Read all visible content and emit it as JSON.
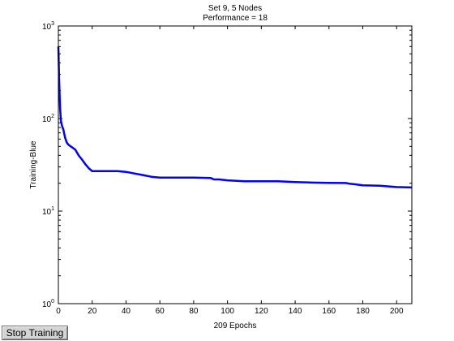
{
  "chart_data": {
    "type": "line",
    "title": "Set 9, 5 Nodes",
    "subtitle": "Performance = 18",
    "xlabel": "209 Epochs",
    "ylabel": "Training-Blue",
    "xlim": [
      0,
      209
    ],
    "ylim": [
      1,
      1000
    ],
    "yscale": "log",
    "grid": false,
    "xticks": [
      0,
      20,
      40,
      60,
      80,
      100,
      120,
      140,
      160,
      180,
      200
    ],
    "yticks": [
      {
        "value": 1,
        "base": "10",
        "exp": "0"
      },
      {
        "value": 10,
        "base": "10",
        "exp": "1"
      },
      {
        "value": 100,
        "base": "10",
        "exp": "2"
      },
      {
        "value": 1000,
        "base": "10",
        "exp": "3"
      }
    ],
    "series": [
      {
        "color": "#0000ff",
        "x": [
          0,
          0.5,
          1,
          1.5,
          2,
          3,
          4,
          5,
          6,
          8,
          10,
          12,
          14,
          16,
          18,
          19,
          20,
          25,
          30,
          35,
          40,
          45,
          50,
          55,
          60,
          70,
          80,
          90,
          92,
          95,
          100,
          110,
          120,
          130,
          140,
          150,
          160,
          170,
          172,
          175,
          180,
          190,
          200,
          209
        ],
        "y": [
          600,
          250,
          130,
          95,
          85,
          75,
          62,
          55,
          52,
          49,
          46,
          40,
          36,
          32,
          29,
          28,
          27,
          27,
          27,
          27,
          26.5,
          25.5,
          24.5,
          23.5,
          23,
          23,
          23,
          22.8,
          22,
          22,
          21.5,
          21,
          21,
          21,
          20.6,
          20.3,
          20.2,
          20.1,
          19.8,
          19.5,
          19,
          18.8,
          18.2,
          18
        ]
      }
    ]
  },
  "controls": {
    "stop_label": "Stop Training"
  }
}
